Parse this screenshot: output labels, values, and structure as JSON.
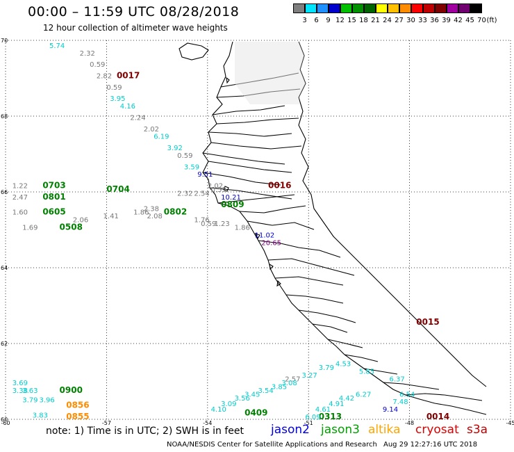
{
  "header": {
    "title": "00:00 – 11:59 UTC 08/28/2018",
    "subtitle": "12 hour collection of altimeter wave heights"
  },
  "legend": {
    "unit": "(ft)",
    "bins": [
      {
        "label": "3",
        "color": "#7f7f7f"
      },
      {
        "label": "6",
        "color": "#00e5ff"
      },
      {
        "label": "9",
        "color": "#1e90ff"
      },
      {
        "label": "12",
        "color": "#0000cd"
      },
      {
        "label": "15",
        "color": "#00c000"
      },
      {
        "label": "18",
        "color": "#009000"
      },
      {
        "label": "21",
        "color": "#006400"
      },
      {
        "label": "24",
        "color": "#ffff00"
      },
      {
        "label": "27",
        "color": "#ffc000"
      },
      {
        "label": "30",
        "color": "#ff8c00"
      },
      {
        "label": "33",
        "color": "#ff0000"
      },
      {
        "label": "36",
        "color": "#c00000"
      },
      {
        "label": "39",
        "color": "#800000"
      },
      {
        "label": "42",
        "color": "#a000a0"
      },
      {
        "label": "45",
        "color": "#700070"
      },
      {
        "label": "70",
        "color": "#000000"
      }
    ]
  },
  "axes": {
    "lon_ticks": [
      "-60",
      "-57",
      "-54",
      "-51",
      "-48",
      "-45"
    ],
    "lat_ticks": [
      "70",
      "68",
      "66",
      "64",
      "62",
      "60"
    ]
  },
  "tracks": [
    {
      "time": "0017",
      "color": "#800000",
      "lon": -56.7,
      "lat": 69.0
    },
    {
      "time": "0016",
      "color": "#800000",
      "lon": -52.2,
      "lat": 66.1
    },
    {
      "time": "0015",
      "color": "#800000",
      "lon": -47.8,
      "lat": 62.5
    },
    {
      "time": "0014",
      "color": "#800000",
      "lon": -47.5,
      "lat": 60.0
    },
    {
      "time": "0703",
      "color": "#008000",
      "lon": -58.9,
      "lat": 66.1
    },
    {
      "time": "0704",
      "color": "#008000",
      "lon": -57.0,
      "lat": 66.0
    },
    {
      "time": "0801",
      "color": "#008000",
      "lon": -58.9,
      "lat": 65.8
    },
    {
      "time": "0605",
      "color": "#008000",
      "lon": -58.9,
      "lat": 65.4
    },
    {
      "time": "0508",
      "color": "#008000",
      "lon": -58.4,
      "lat": 65.0
    },
    {
      "time": "0802",
      "color": "#008000",
      "lon": -55.3,
      "lat": 65.4
    },
    {
      "time": "0809",
      "color": "#008000",
      "lon": -53.6,
      "lat": 65.6
    },
    {
      "time": "0409",
      "color": "#008000",
      "lon": -52.9,
      "lat": 60.1
    },
    {
      "time": "0313",
      "color": "#008000",
      "lon": -50.7,
      "lat": 60.0
    },
    {
      "time": "0900",
      "color": "#008000",
      "lon": -58.4,
      "lat": 60.7
    },
    {
      "time": "0856",
      "color": "#ff8c00",
      "lon": -58.2,
      "lat": 60.3
    },
    {
      "time": "0855",
      "color": "#ff8c00",
      "lon": -58.2,
      "lat": 60.0
    }
  ],
  "points": [
    {
      "v": "5.74",
      "c": "#00cccc",
      "lon": -58.7,
      "lat": 69.8
    },
    {
      "v": "2.32",
      "c": "#777777",
      "lon": -57.8,
      "lat": 69.6
    },
    {
      "v": "0.59",
      "c": "#777777",
      "lon": -57.5,
      "lat": 69.3
    },
    {
      "v": "2.82",
      "c": "#777777",
      "lon": -57.3,
      "lat": 69.0
    },
    {
      "v": "0.59",
      "c": "#777777",
      "lon": -57.0,
      "lat": 68.7
    },
    {
      "v": "3.95",
      "c": "#00cccc",
      "lon": -56.9,
      "lat": 68.4
    },
    {
      "v": "4.16",
      "c": "#00cccc",
      "lon": -56.6,
      "lat": 68.2
    },
    {
      "v": "2.24",
      "c": "#777777",
      "lon": -56.3,
      "lat": 67.9
    },
    {
      "v": "2.02",
      "c": "#777777",
      "lon": -55.9,
      "lat": 67.6
    },
    {
      "v": "6.19",
      "c": "#00cccc",
      "lon": -55.6,
      "lat": 67.4
    },
    {
      "v": "3.92",
      "c": "#00cccc",
      "lon": -55.2,
      "lat": 67.1
    },
    {
      "v": "0.59",
      "c": "#777777",
      "lon": -54.9,
      "lat": 66.9
    },
    {
      "v": "3.59",
      "c": "#00cccc",
      "lon": -54.7,
      "lat": 66.6
    },
    {
      "v": "9.51",
      "c": "#0000cd",
      "lon": -54.3,
      "lat": 66.4
    },
    {
      "v": "2.02",
      "c": "#777777",
      "lon": -54.0,
      "lat": 66.1
    },
    {
      "v": "10.21",
      "c": "#0000cd",
      "lon": -53.6,
      "lat": 65.8
    },
    {
      "v": "1.22",
      "c": "#777777",
      "lon": -59.8,
      "lat": 66.1
    },
    {
      "v": "2.47",
      "c": "#777777",
      "lon": -59.8,
      "lat": 65.8
    },
    {
      "v": "1.60",
      "c": "#777777",
      "lon": -59.8,
      "lat": 65.4
    },
    {
      "v": "1.69",
      "c": "#777777",
      "lon": -59.5,
      "lat": 65.0
    },
    {
      "v": "2.06",
      "c": "#777777",
      "lon": -58.0,
      "lat": 65.2
    },
    {
      "v": "1.41",
      "c": "#777777",
      "lon": -57.1,
      "lat": 65.3
    },
    {
      "v": "1.86",
      "c": "#777777",
      "lon": -56.2,
      "lat": 65.4
    },
    {
      "v": "2.08",
      "c": "#777777",
      "lon": -55.8,
      "lat": 65.3
    },
    {
      "v": "2.38",
      "c": "#777777",
      "lon": -55.9,
      "lat": 65.5
    },
    {
      "v": "2.32",
      "c": "#777777",
      "lon": -54.9,
      "lat": 65.9
    },
    {
      "v": "2.54",
      "c": "#777777",
      "lon": -54.4,
      "lat": 65.9
    },
    {
      "v": "0.59",
      "c": "#777777",
      "lon": -53.9,
      "lat": 66.0
    },
    {
      "v": "1.76",
      "c": "#777777",
      "lon": -54.4,
      "lat": 65.2
    },
    {
      "v": "0.59",
      "c": "#777777",
      "lon": -54.2,
      "lat": 65.1
    },
    {
      "v": "1.23",
      "c": "#777777",
      "lon": -53.8,
      "lat": 65.1
    },
    {
      "v": "1.86",
      "c": "#777777",
      "lon": -53.2,
      "lat": 65.0
    },
    {
      "v": "11.02",
      "c": "#0000cd",
      "lon": -52.6,
      "lat": 64.8
    },
    {
      "v": "20.65",
      "c": "#800080",
      "lon": -52.4,
      "lat": 64.6
    },
    {
      "v": "2.57",
      "c": "#777777",
      "lon": -51.7,
      "lat": 61.0
    },
    {
      "v": "3.27",
      "c": "#00cccc",
      "lon": -51.2,
      "lat": 61.1
    },
    {
      "v": "3.79",
      "c": "#00cccc",
      "lon": -50.7,
      "lat": 61.3
    },
    {
      "v": "4.53",
      "c": "#00cccc",
      "lon": -50.2,
      "lat": 61.4
    },
    {
      "v": "5.85",
      "c": "#00cccc",
      "lon": -49.5,
      "lat": 61.2
    },
    {
      "v": "6.37",
      "c": "#00cccc",
      "lon": -48.6,
      "lat": 61.0
    },
    {
      "v": "6.27",
      "c": "#00cccc",
      "lon": -49.6,
      "lat": 60.6
    },
    {
      "v": "6.54",
      "c": "#00cccc",
      "lon": -48.3,
      "lat": 60.6
    },
    {
      "v": "7.48",
      "c": "#00cccc",
      "lon": -48.5,
      "lat": 60.4
    },
    {
      "v": "9.14",
      "c": "#0000cd",
      "lon": -48.8,
      "lat": 60.2
    },
    {
      "v": "3.08",
      "c": "#00cccc",
      "lon": -51.8,
      "lat": 60.9
    },
    {
      "v": "3.85",
      "c": "#00cccc",
      "lon": -52.1,
      "lat": 60.8
    },
    {
      "v": "3.54",
      "c": "#00cccc",
      "lon": -52.5,
      "lat": 60.7
    },
    {
      "v": "3.45",
      "c": "#00cccc",
      "lon": -52.9,
      "lat": 60.6
    },
    {
      "v": "3.56",
      "c": "#00cccc",
      "lon": -53.2,
      "lat": 60.5
    },
    {
      "v": "3.09",
      "c": "#00cccc",
      "lon": -53.6,
      "lat": 60.35
    },
    {
      "v": "4.10",
      "c": "#00cccc",
      "lon": -53.9,
      "lat": 60.2
    },
    {
      "v": "4.91",
      "c": "#00cccc",
      "lon": -50.4,
      "lat": 60.35
    },
    {
      "v": "4.42",
      "c": "#00cccc",
      "lon": -50.1,
      "lat": 60.5
    },
    {
      "v": "4.61",
      "c": "#00cccc",
      "lon": -50.8,
      "lat": 60.2
    },
    {
      "v": "6.09",
      "c": "#00cccc",
      "lon": -51.1,
      "lat": 60.0
    },
    {
      "v": "3.69",
      "c": "#00cccc",
      "lon": -59.8,
      "lat": 60.9
    },
    {
      "v": "3.38",
      "c": "#00cccc",
      "lon": -59.8,
      "lat": 60.7
    },
    {
      "v": "3.63",
      "c": "#00cccc",
      "lon": -59.5,
      "lat": 60.7
    },
    {
      "v": "3.79",
      "c": "#00cccc",
      "lon": -59.5,
      "lat": 60.45
    },
    {
      "v": "3.96",
      "c": "#00cccc",
      "lon": -59.0,
      "lat": 60.45
    },
    {
      "v": "3.83",
      "c": "#00cccc",
      "lon": -59.2,
      "lat": 60.05
    }
  ],
  "footer": {
    "note": "note:  1) Time is in UTC;  2) SWH is in feet",
    "satellites": [
      {
        "name": "jason2",
        "color": "#0000e0"
      },
      {
        "name": "jason3",
        "color": "#00a000"
      },
      {
        "name": "altika",
        "color": "#ffa500"
      },
      {
        "name": "cryosat",
        "color": "#e00000"
      },
      {
        "name": "s3a",
        "color": "#c00000"
      }
    ],
    "credit": "NOAA/NESDIS Center for Satellite Applications and Research",
    "timestamp": "Aug 29 12:27:16 UTC 2018"
  }
}
